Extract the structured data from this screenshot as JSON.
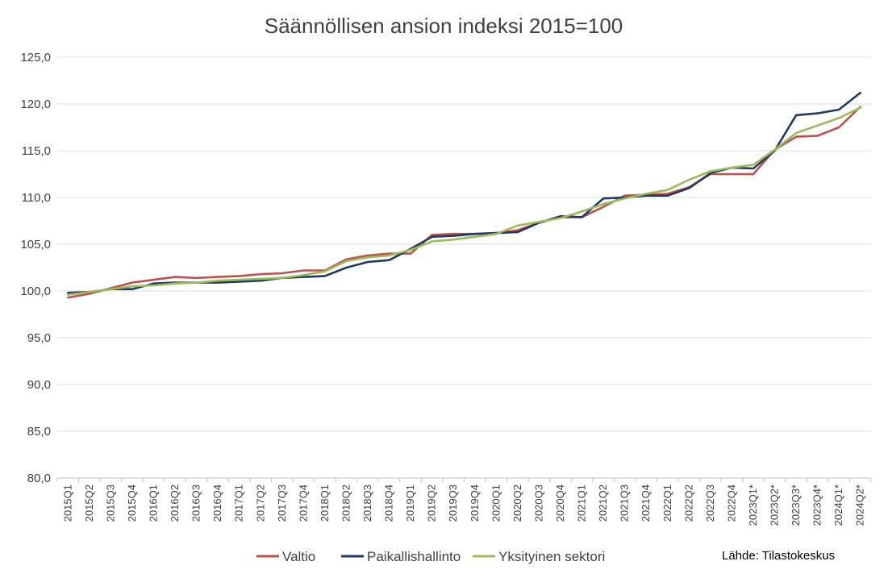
{
  "chart_data": {
    "type": "line",
    "title": "Säännöllisen ansion indeksi 2015=100",
    "xlabel": "",
    "ylabel": "",
    "ylim": [
      80,
      125
    ],
    "y_ticks": [
      "80,0",
      "85,0",
      "90,0",
      "95,0",
      "100,0",
      "105,0",
      "110,0",
      "115,0",
      "120,0",
      "125,0"
    ],
    "grid": true,
    "legend_position": "bottom",
    "source": "Lähde: Tilastokeskus",
    "categories": [
      "2015Q1",
      "2015Q2",
      "2015Q3",
      "2015Q4",
      "2016Q1",
      "2016Q2",
      "2016Q3",
      "2016Q4",
      "2017Q1",
      "2017Q2",
      "2017Q3",
      "2017Q4",
      "2018Q1",
      "2018Q2",
      "2018Q3",
      "2018Q4",
      "2019Q1",
      "2019Q2",
      "2019Q3",
      "2019Q4",
      "2020Q1",
      "2020Q2",
      "2020Q3",
      "2020Q4",
      "2021Q1",
      "2021Q2",
      "2021Q3",
      "2021Q4",
      "2022Q1",
      "2022Q2",
      "2022Q3",
      "2022Q4",
      "2023Q1*",
      "2023Q2*",
      "2023Q3*",
      "2023Q4*",
      "2024Q1*",
      "2024Q2*"
    ],
    "series": [
      {
        "name": "Valtio",
        "color": "#c0504d",
        "values": [
          99.3,
          99.7,
          100.3,
          100.9,
          101.2,
          101.5,
          101.4,
          101.5,
          101.6,
          101.8,
          101.9,
          102.2,
          102.2,
          103.4,
          103.8,
          104.0,
          104.0,
          106.0,
          106.1,
          106.1,
          106.2,
          106.5,
          107.3,
          107.9,
          107.9,
          109.0,
          110.2,
          110.3,
          110.4,
          111.1,
          112.5,
          112.5,
          112.5,
          115.1,
          116.5,
          116.6,
          117.5,
          119.7
        ]
      },
      {
        "name": "Paikallishallinto",
        "color": "#1f3864",
        "values": [
          99.8,
          99.9,
          100.2,
          100.2,
          100.8,
          100.9,
          100.9,
          100.9,
          101.0,
          101.1,
          101.4,
          101.5,
          101.6,
          102.5,
          103.1,
          103.3,
          104.5,
          105.8,
          105.9,
          106.1,
          106.2,
          106.3,
          107.3,
          108.0,
          107.9,
          109.9,
          110.0,
          110.2,
          110.2,
          111.0,
          112.6,
          113.2,
          113.1,
          115.0,
          118.8,
          119.0,
          119.4,
          121.2
        ]
      },
      {
        "name": "Yksityinen sektori",
        "color": "#9bbb59",
        "values": [
          99.6,
          99.9,
          100.2,
          100.5,
          100.6,
          100.8,
          100.9,
          101.1,
          101.2,
          101.3,
          101.4,
          101.7,
          102.1,
          103.2,
          103.6,
          103.8,
          104.4,
          105.3,
          105.5,
          105.8,
          106.1,
          107.0,
          107.4,
          107.8,
          108.5,
          109.3,
          109.9,
          110.4,
          110.8,
          111.9,
          112.8,
          113.2,
          113.5,
          115.1,
          116.9,
          117.7,
          118.5,
          119.6
        ]
      }
    ]
  }
}
